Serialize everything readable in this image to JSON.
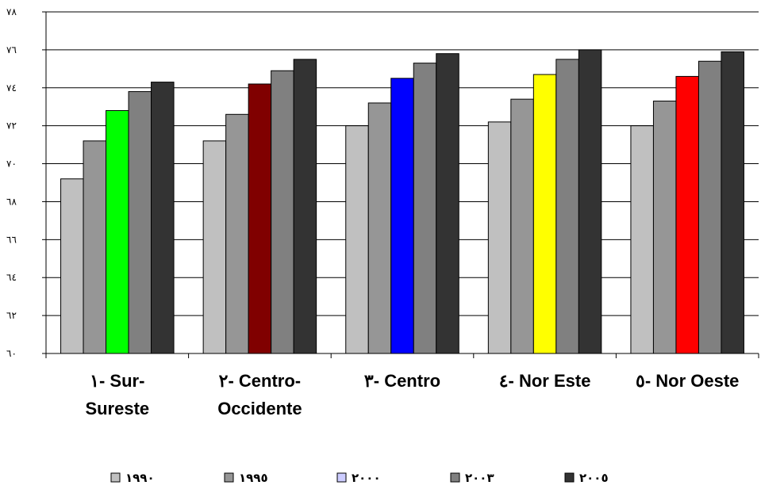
{
  "chart_data": {
    "type": "bar",
    "title": "",
    "xlabel": "",
    "ylabel": "",
    "ylim": [
      60,
      78
    ],
    "grid": true,
    "legend_position": "bottom",
    "y_ticks": [
      "٦٠",
      "٦٢",
      "٦٤",
      "٦٦",
      "٦٨",
      "٧٠",
      "٧٢",
      "٧٤",
      "٧٦",
      "٧٨"
    ],
    "y_tick_values": [
      60,
      62,
      64,
      66,
      68,
      70,
      72,
      74,
      76,
      78
    ],
    "categories": [
      [
        "١- Sur-",
        "Sureste"
      ],
      [
        "٢- Centro-",
        "Occidente"
      ],
      [
        "٣- Centro"
      ],
      [
        "٤- Nor Este"
      ],
      [
        "٥- Nor Oeste"
      ]
    ],
    "series": [
      {
        "name": "١٩٩٠",
        "color": "#c0c0c0",
        "values": [
          69.2,
          71.2,
          72.0,
          72.2,
          72.0
        ]
      },
      {
        "name": "١٩٩٥",
        "color": "#969696",
        "values": [
          71.2,
          72.6,
          73.2,
          73.4,
          73.3
        ]
      },
      {
        "name": "٢٠٠٠",
        "color": "#ccccff",
        "values": [
          72.8,
          74.2,
          74.5,
          74.7,
          74.6
        ]
      },
      {
        "name": "٢٠٠٣",
        "color": "#808080",
        "values": [
          73.8,
          74.9,
          75.3,
          75.5,
          75.4
        ]
      },
      {
        "name": "٢٠٠٥",
        "color": "#333333",
        "values": [
          74.3,
          75.5,
          75.8,
          76.0,
          75.9
        ]
      }
    ],
    "highlight_colors": [
      "#00ff00",
      "#800000",
      "#0000ff",
      "#ffff00",
      "#ff0000"
    ]
  }
}
